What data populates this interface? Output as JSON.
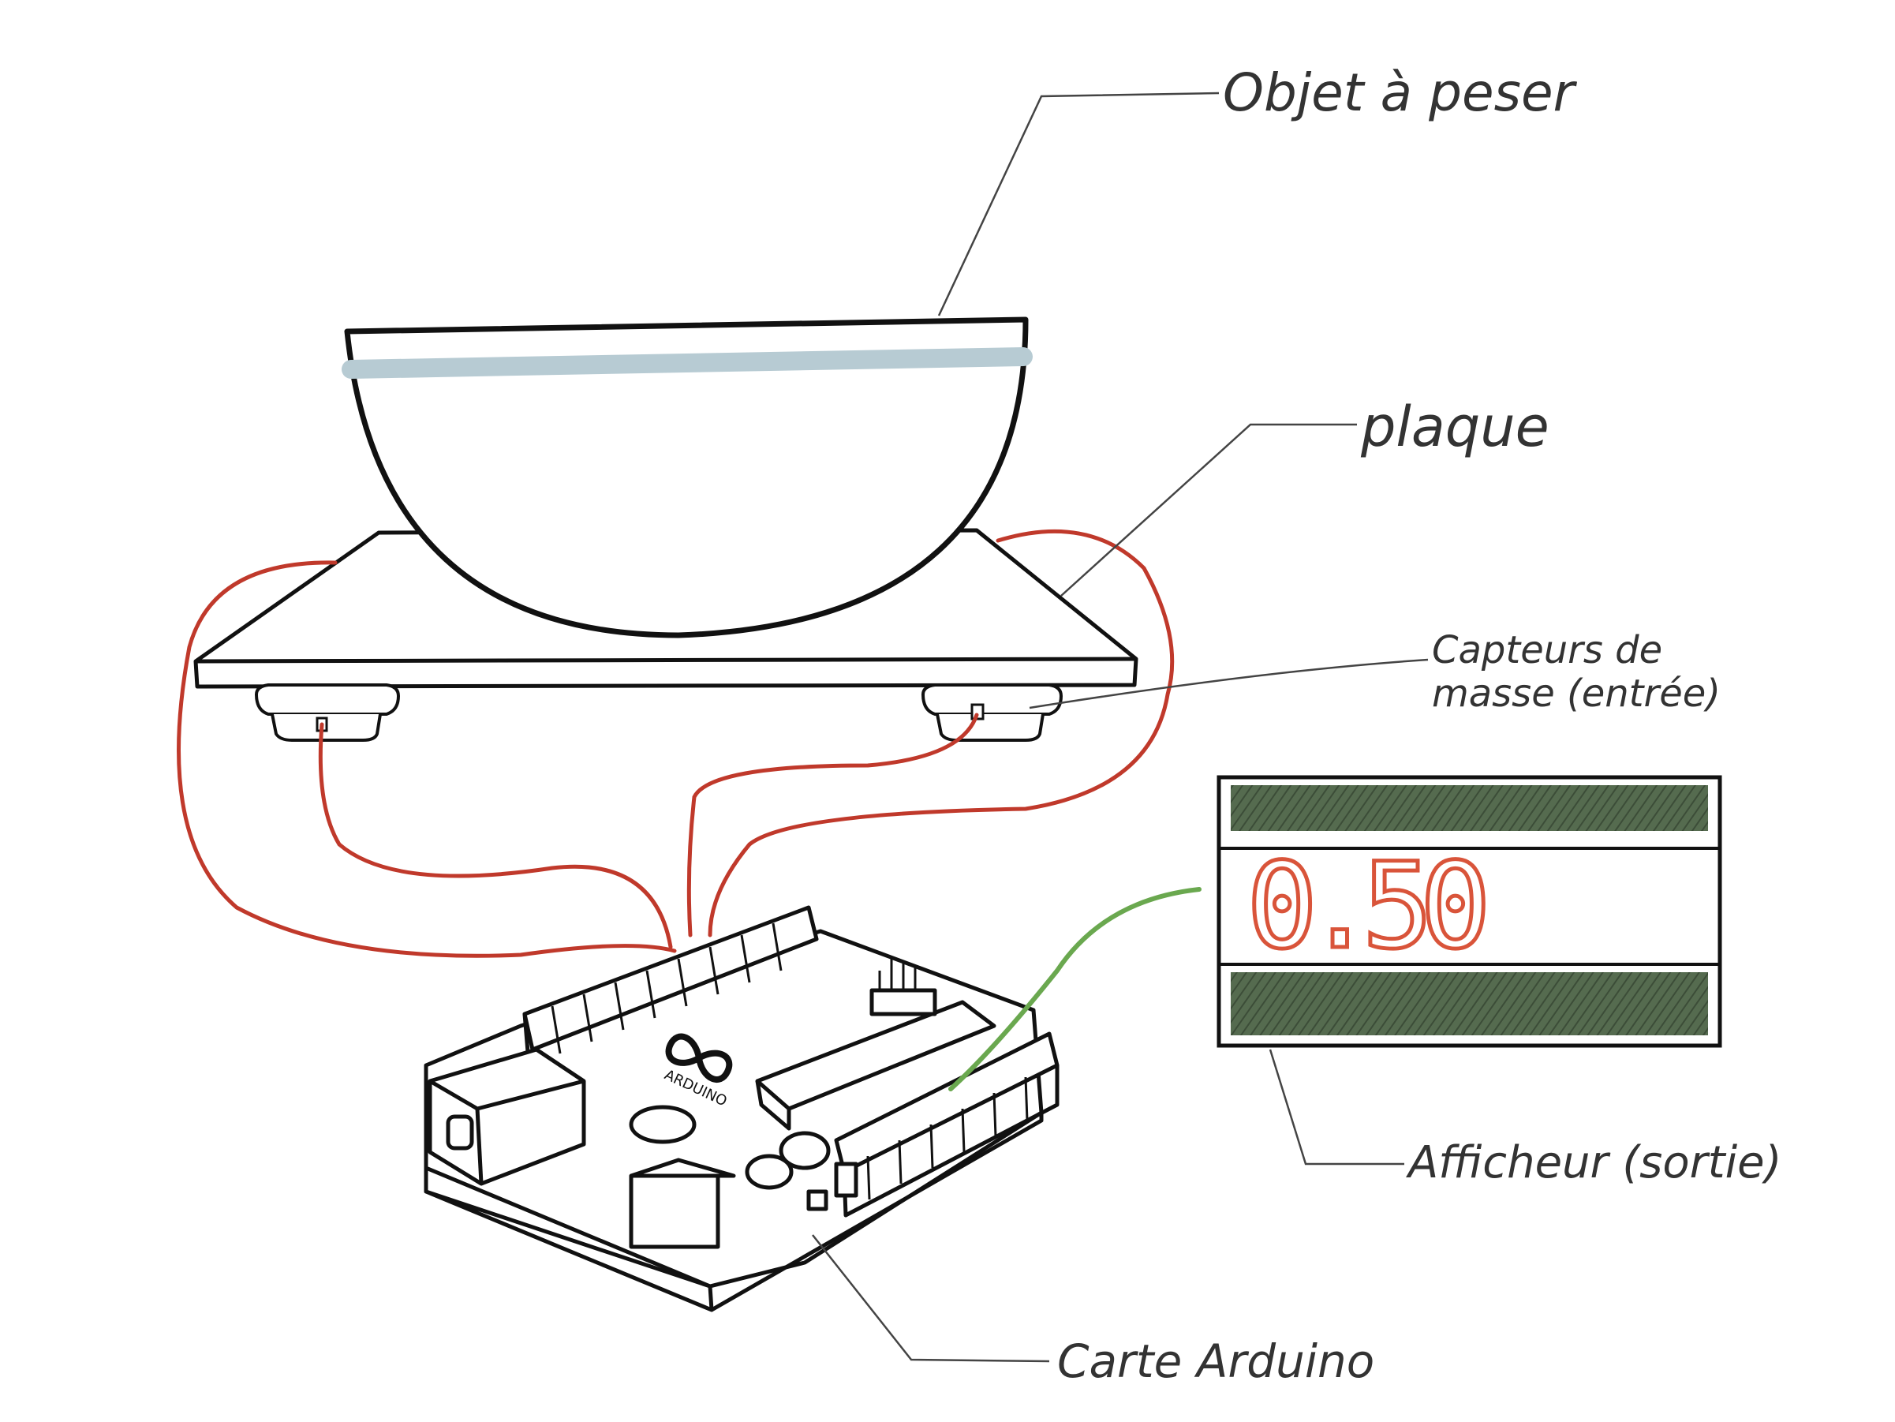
{
  "labels": {
    "object": "Objet à peser",
    "plate": "plaque",
    "sensors_line1": "Capteurs de",
    "sensors_line2": "masse (entrée)",
    "display": "Afficheur (sortie)",
    "board": "Carte Arduino"
  },
  "board_logo": {
    "text": "ARDUINO",
    "icon": "infinity-icon"
  },
  "display": {
    "reading": "0.50"
  },
  "colors": {
    "wire": "#c0392b",
    "signal_wire": "#6aa84f",
    "display_bar": "#4a5e45",
    "digit": "#d9543a",
    "water_band": "#b7cbd3",
    "outline": "#111111",
    "leader": "#444444"
  }
}
